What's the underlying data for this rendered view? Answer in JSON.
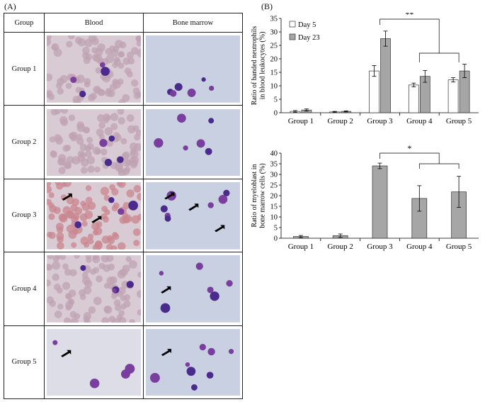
{
  "panel_a": {
    "label": "(A)",
    "headers": [
      "Group",
      "Blood",
      "Bone marrow"
    ],
    "rows": [
      {
        "group": "Group 1",
        "blood_arrows": 0,
        "marrow_arrows": 0
      },
      {
        "group": "Group 2",
        "blood_arrows": 0,
        "marrow_arrows": 0
      },
      {
        "group": "Group 3",
        "blood_arrows": 2,
        "marrow_arrows": 3
      },
      {
        "group": "Group 4",
        "blood_arrows": 0,
        "marrow_arrows": 1
      },
      {
        "group": "Group 5",
        "blood_arrows": 1,
        "marrow_arrows": 1
      }
    ]
  },
  "panel_b": {
    "label": "(B)"
  },
  "chart_data": [
    {
      "type": "bar",
      "ylabel": "Ratio of banded neutrophils in blood leukocytes (%)",
      "ylabel_lines": [
        "Ratio of banded neutrophils",
        "in blood leukocytes (%)"
      ],
      "categories": [
        "Group 1",
        "Group 2",
        "Group 3",
        "Group 4",
        "Group 5"
      ],
      "series": [
        {
          "name": "Day 5",
          "color": "#ffffff",
          "values": [
            0.5,
            0.3,
            15.5,
            10.3,
            12.2
          ],
          "errors": [
            0.3,
            0.2,
            2.0,
            0.7,
            0.8
          ]
        },
        {
          "name": "Day 23",
          "color": "#a6a6a6",
          "values": [
            1.0,
            0.5,
            27.5,
            13.5,
            15.5
          ],
          "errors": [
            0.4,
            0.2,
            2.8,
            2.2,
            2.5
          ]
        }
      ],
      "ylim": [
        0,
        35
      ],
      "yticks": [
        0,
        5,
        10,
        15,
        20,
        25,
        30,
        35
      ],
      "legend": "top-left",
      "annotation": "**"
    },
    {
      "type": "bar",
      "ylabel": "Ratio of myeloblast in bone marrow cells (%)",
      "ylabel_lines": [
        "Ratio of myeloblast in",
        "bone marrow cells (%)"
      ],
      "categories": [
        "Group 1",
        "Group 2",
        "Group 3",
        "Group 4",
        "Group 5"
      ],
      "series": [
        {
          "name": "",
          "color": "#a6a6a6",
          "values": [
            0.8,
            1.2,
            34.0,
            18.7,
            21.8
          ],
          "errors": [
            0.5,
            0.8,
            1.3,
            6.0,
            7.3
          ]
        }
      ],
      "ylim": [
        0,
        40
      ],
      "yticks": [
        0,
        5,
        10,
        15,
        20,
        25,
        30,
        35,
        40
      ],
      "legend": "none",
      "annotation": "*"
    }
  ]
}
